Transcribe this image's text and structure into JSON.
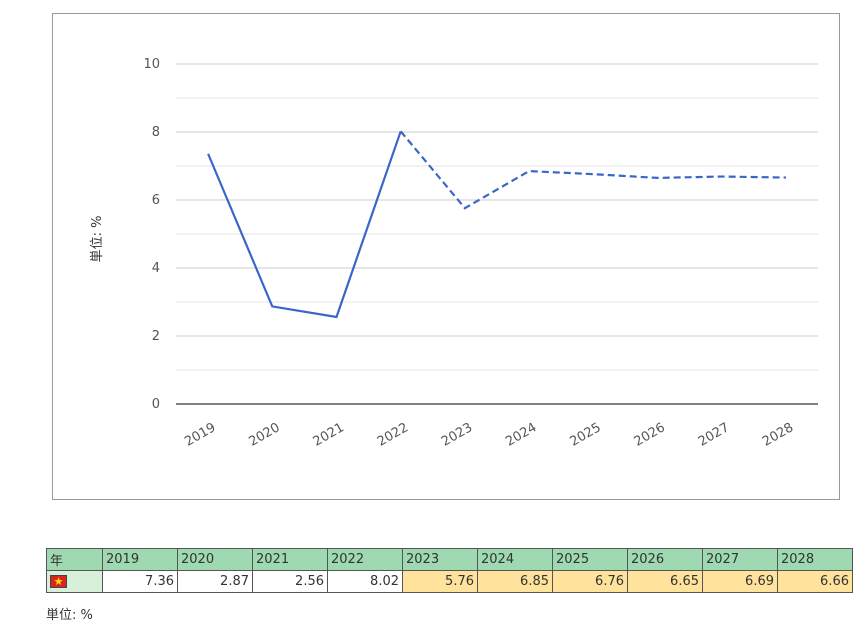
{
  "chart_data": {
    "type": "line",
    "x": [
      "2019",
      "2020",
      "2021",
      "2022",
      "2023",
      "2024",
      "2025",
      "2026",
      "2027",
      "2028"
    ],
    "series": [
      {
        "values": [
          7.36,
          2.87,
          2.56,
          8.02,
          5.76,
          6.85,
          6.76,
          6.65,
          6.69,
          6.66
        ],
        "color": "#3a66c8",
        "forecast_from_index": 3
      }
    ],
    "ylabel": "単位: %",
    "ylim": [
      0,
      10
    ],
    "yticks": [
      0,
      2,
      4,
      6,
      8,
      10
    ],
    "grid": true,
    "forecast_style": "dashed"
  },
  "table": {
    "year_header": "年",
    "years": [
      "2019",
      "2020",
      "2021",
      "2022",
      "2023",
      "2024",
      "2025",
      "2026",
      "2027",
      "2028"
    ],
    "values": [
      "7.36",
      "2.87",
      "2.56",
      "8.02",
      "5.76",
      "6.85",
      "6.76",
      "6.65",
      "6.69",
      "6.66"
    ],
    "forecast_start_index": 4,
    "flag_icon": "vietnam-flag-icon",
    "header_color": "#9ed9b1",
    "forecast_color": "#ffe29c"
  },
  "unit_note": "単位: %"
}
